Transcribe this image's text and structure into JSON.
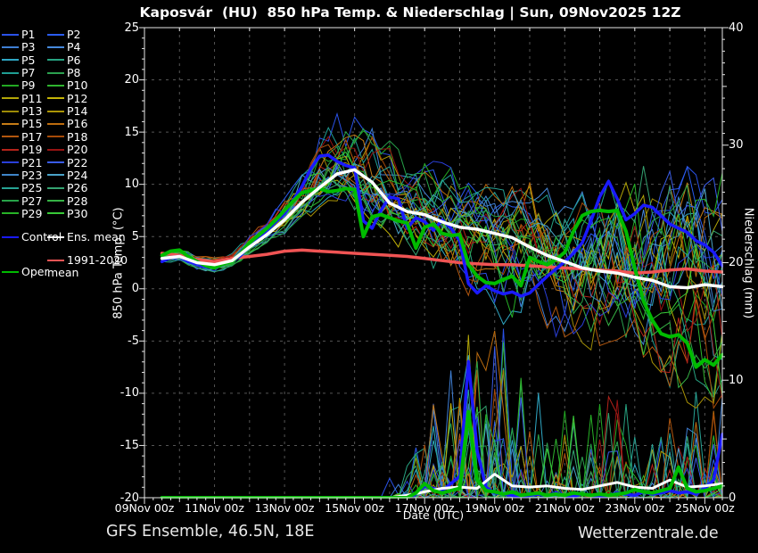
{
  "title": "Kaposvár  (HU)  850 hPa Temp. & Niederschlag | Sun, 09Nov2025 12Z",
  "footer": {
    "left": "GFS Ensemble, 46.5N, 18E",
    "right": "Wetterzentrale.de"
  },
  "chart_data": {
    "type": "line",
    "title": "Kaposvár  (HU)  850 hPa Temp. & Niederschlag | Sun, 09Nov2025 12Z",
    "x_axis": {
      "label": "Date (UTC)",
      "tick_labels": [
        "09Nov 00z",
        "11Nov 00z",
        "13Nov 00z",
        "15Nov 00z",
        "17Nov 00z",
        "19Nov 00z",
        "21Nov 00z",
        "23Nov 00z",
        "25Nov 00z"
      ],
      "tick_days": [
        0,
        2,
        4,
        6,
        8,
        10,
        12,
        14,
        16
      ],
      "range_days": 16.5,
      "grid_interval_days": 1,
      "minor_tick_days": 0.25
    },
    "y_left": {
      "label": "850 hPa Temp. (°C)",
      "min": -20,
      "max": 25,
      "tick_labels": [
        "25",
        "20",
        "15",
        "10",
        "5",
        "0",
        "-5",
        "-10",
        "-15",
        "-20"
      ],
      "tick_values": [
        25,
        20,
        15,
        10,
        5,
        0,
        -5,
        -10,
        -15,
        -20
      ],
      "grid_step": 5,
      "minor_step": 1
    },
    "y_right": {
      "label": "Niederschlag (mm)",
      "min": 0,
      "max": 40,
      "tick_labels": [
        "40",
        "30",
        "20",
        "10",
        "0"
      ],
      "tick_values": [
        40,
        30,
        20,
        10,
        0
      ],
      "major_step": 10,
      "medium_step": 5,
      "minor_step": 1
    },
    "style": {
      "background": "#000000",
      "frame": "#e6e6e6",
      "grid": "#555555",
      "text": "#ffffff"
    },
    "series_t0_days": 0.5,
    "series": {
      "ens_mean": {
        "label": "Ens. mean",
        "color": "#ffffff",
        "width": 3.5,
        "dt_days": 0.5,
        "temp": [
          2.9,
          3.1,
          2.5,
          2.3,
          2.7,
          4.0,
          5.2,
          6.6,
          8.3,
          9.7,
          11.0,
          11.4,
          10.2,
          8.2,
          7.4,
          7.1,
          6.4,
          5.9,
          5.7,
          5.3,
          4.9,
          4.0,
          3.2,
          2.6,
          2.0,
          1.7,
          1.5,
          1.1,
          0.8,
          0.2,
          0.1,
          0.4,
          0.2
        ],
        "precip": [
          0,
          0,
          0,
          0,
          0,
          0,
          0,
          0,
          0,
          0,
          0,
          0,
          0,
          0,
          0.2,
          0.5,
          0.8,
          0.9,
          0.8,
          2.0,
          1.0,
          0.9,
          1.0,
          0.8,
          0.7,
          1.0,
          1.3,
          0.9,
          0.8,
          1.5,
          0.9,
          1.0,
          1.2
        ]
      },
      "control": {
        "label": "Control",
        "color": "#1a1aff",
        "width": 3.5,
        "dt_days": 0.25,
        "temp": [
          2.6,
          3.0,
          3.1,
          2.6,
          2.4,
          2.1,
          2.2,
          2.4,
          2.6,
          3.2,
          4.2,
          4.9,
          5.6,
          6.4,
          7.2,
          8.5,
          9.8,
          11.5,
          12.7,
          12.8,
          12.2,
          11.8,
          11.6,
          6.5,
          5.8,
          7.5,
          8.8,
          8.6,
          5.8,
          6.8,
          6.4,
          5.6,
          6.6,
          5.8,
          4.6,
          0.5,
          -0.4,
          0.3,
          -0.2,
          -0.5,
          -0.3,
          -0.7,
          -0.4,
          0.4,
          1.2,
          1.9,
          2.6,
          3.4,
          4.4,
          6.5,
          8.8,
          10.3,
          8.6,
          6.6,
          7.2,
          8.0,
          7.8,
          7.0,
          6.2,
          5.8,
          5.4,
          4.6,
          4.2,
          3.5,
          2.2
        ],
        "precip": [
          0,
          0,
          0,
          0,
          0,
          0,
          0,
          0,
          0,
          0,
          0,
          0,
          0,
          0,
          0,
          0,
          0,
          0,
          0,
          0,
          0,
          0,
          0,
          0,
          0,
          0,
          0,
          0,
          0,
          0.3,
          1.0,
          0.8,
          0.6,
          1.2,
          1.8,
          11.6,
          4.0,
          0.9,
          0.4,
          0.3,
          0.2,
          0.1,
          0.2,
          0.3,
          0.2,
          0.4,
          0.2,
          0.1,
          0.3,
          0.2,
          0.1,
          0.2,
          0.4,
          0.3,
          0.2,
          0.5,
          0.3,
          0.4,
          0.6,
          0.4,
          0.5,
          0.3,
          0.8,
          1.5,
          5.4
        ]
      },
      "oper": {
        "label": "Oper",
        "color": "#00bb00",
        "width": 4,
        "dt_days": 0.25,
        "temp": [
          3.2,
          3.6,
          3.7,
          3.1,
          2.6,
          2.2,
          2.0,
          2.4,
          2.6,
          3.4,
          4.4,
          5.1,
          5.8,
          6.6,
          7.5,
          8.4,
          9.2,
          9.4,
          9.6,
          9.3,
          9.4,
          9.6,
          9.5,
          5.0,
          6.9,
          7.1,
          6.8,
          6.5,
          6.3,
          3.9,
          5.9,
          6.2,
          5.3,
          5.1,
          5.2,
          2.3,
          1.2,
          0.6,
          0.5,
          0.9,
          1.2,
          0.3,
          3.0,
          2.6,
          2.3,
          2.8,
          3.5,
          5.5,
          7.0,
          7.4,
          7.5,
          7.4,
          7.5,
          5.5,
          2.0,
          -1.2,
          -3.0,
          -4.3,
          -4.6,
          -4.4,
          -5.2,
          -7.5,
          -6.8,
          -7.3,
          -6.3
        ],
        "precip": [
          0,
          0,
          0,
          0,
          0,
          0,
          0,
          0,
          0,
          0,
          0,
          0,
          0,
          0,
          0,
          0,
          0,
          0,
          0,
          0,
          0,
          0,
          0,
          0,
          0,
          0,
          0,
          0,
          0,
          0.4,
          1.2,
          0.6,
          0.4,
          0.6,
          0.8,
          7.3,
          1.5,
          0.6,
          0.5,
          0.3,
          0.5,
          0.2,
          0.3,
          0.4,
          0.2,
          0.3,
          0.2,
          0.4,
          0.3,
          0.2,
          0.3,
          0.2,
          0.3,
          0.4,
          0.7,
          0.5,
          0.4,
          0.6,
          0.8,
          2.6,
          0.8,
          0.5,
          0.6,
          0.8,
          1.0
        ]
      },
      "clim_mean": {
        "label": "1991-2020 mean",
        "color": "#f05454",
        "width": 3.5,
        "dt_days": 0.5,
        "temp": [
          3.4,
          3.2,
          2.8,
          2.6,
          2.9,
          3.1,
          3.3,
          3.6,
          3.7,
          3.6,
          3.5,
          3.4,
          3.3,
          3.2,
          3.1,
          2.9,
          2.7,
          2.5,
          2.4,
          2.3,
          2.3,
          2.2,
          2.1,
          2.0,
          1.9,
          1.8,
          1.7,
          1.5,
          1.6,
          1.8,
          1.9,
          1.7,
          1.6
        ]
      }
    },
    "members": {
      "seed_base": 1234,
      "line_width": 1,
      "dt_days": 0.25,
      "envelope_dt_days": 0.5,
      "envelope_min": [
        2.5,
        2.6,
        1.9,
        1.6,
        2.1,
        3.3,
        4.3,
        5.3,
        6.6,
        7.6,
        8.2,
        8.0,
        5.8,
        4.5,
        3.5,
        3.0,
        2.0,
        1.0,
        -0.8,
        -2.0,
        -3.0,
        -3.5,
        -4.0,
        -4.5,
        -5.0,
        -5.5,
        -5.5,
        -6.5,
        -7.5,
        -8.5,
        -10.0,
        -11.5,
        -13.0
      ],
      "envelope_max": [
        3.7,
        4.1,
        3.1,
        2.9,
        3.4,
        5.0,
        6.6,
        8.6,
        11.2,
        13.8,
        15.8,
        16.8,
        15.2,
        13.2,
        12.2,
        11.6,
        11.2,
        10.8,
        10.2,
        10.0,
        9.8,
        9.6,
        9.2,
        9.4,
        9.8,
        10.2,
        10.8,
        11.0,
        11.0,
        10.8,
        10.4,
        10.0,
        9.4
      ],
      "precip_prob": [
        0,
        0,
        0,
        0,
        0,
        0,
        0,
        0,
        0,
        0,
        0,
        0,
        0,
        0.15,
        0.3,
        0.45,
        0.5,
        0.5,
        0.5,
        0.45,
        0.4,
        0.35,
        0.3,
        0.3,
        0.3,
        0.35,
        0.35,
        0.3,
        0.3,
        0.3,
        0.35,
        0.35,
        0.35
      ],
      "precip_spike_max": [
        0,
        0,
        0,
        0,
        0,
        0,
        0,
        0,
        0,
        0,
        0,
        0,
        0,
        2,
        3,
        6,
        10,
        12,
        16,
        18,
        12,
        10,
        8,
        8,
        7,
        9,
        10,
        8,
        8,
        8,
        10,
        9,
        9
      ],
      "list": [
        {
          "label": "P1",
          "color": "#2a52e8"
        },
        {
          "label": "P2",
          "color": "#2a5cf0"
        },
        {
          "label": "P3",
          "color": "#3f7fd4"
        },
        {
          "label": "P4",
          "color": "#4689dc"
        },
        {
          "label": "P5",
          "color": "#2fa7c4"
        },
        {
          "label": "P6",
          "color": "#27a382"
        },
        {
          "label": "P7",
          "color": "#1f9e94"
        },
        {
          "label": "P8",
          "color": "#2ba04f"
        },
        {
          "label": "P9",
          "color": "#23a823"
        },
        {
          "label": "P10",
          "color": "#2fb52f"
        },
        {
          "label": "P11",
          "color": "#b3a607"
        },
        {
          "label": "P12",
          "color": "#c4b407"
        },
        {
          "label": "P13",
          "color": "#9d8b06"
        },
        {
          "label": "P14",
          "color": "#ab9406"
        },
        {
          "label": "P15",
          "color": "#c67c16"
        },
        {
          "label": "P16",
          "color": "#bd6c0e"
        },
        {
          "label": "P17",
          "color": "#b3570e"
        },
        {
          "label": "P18",
          "color": "#a64a08"
        },
        {
          "label": "P19",
          "color": "#b3231a"
        },
        {
          "label": "P20",
          "color": "#971312"
        },
        {
          "label": "P21",
          "color": "#2a3fd9"
        },
        {
          "label": "P22",
          "color": "#3a5ce8"
        },
        {
          "label": "P23",
          "color": "#3f85c9"
        },
        {
          "label": "P24",
          "color": "#4aa3c9"
        },
        {
          "label": "P25",
          "color": "#27a394"
        },
        {
          "label": "P26",
          "color": "#34a371"
        },
        {
          "label": "P27",
          "color": "#27a349"
        },
        {
          "label": "P28",
          "color": "#36b345"
        },
        {
          "label": "P29",
          "color": "#27b327"
        },
        {
          "label": "P30",
          "color": "#38c938"
        }
      ]
    }
  }
}
